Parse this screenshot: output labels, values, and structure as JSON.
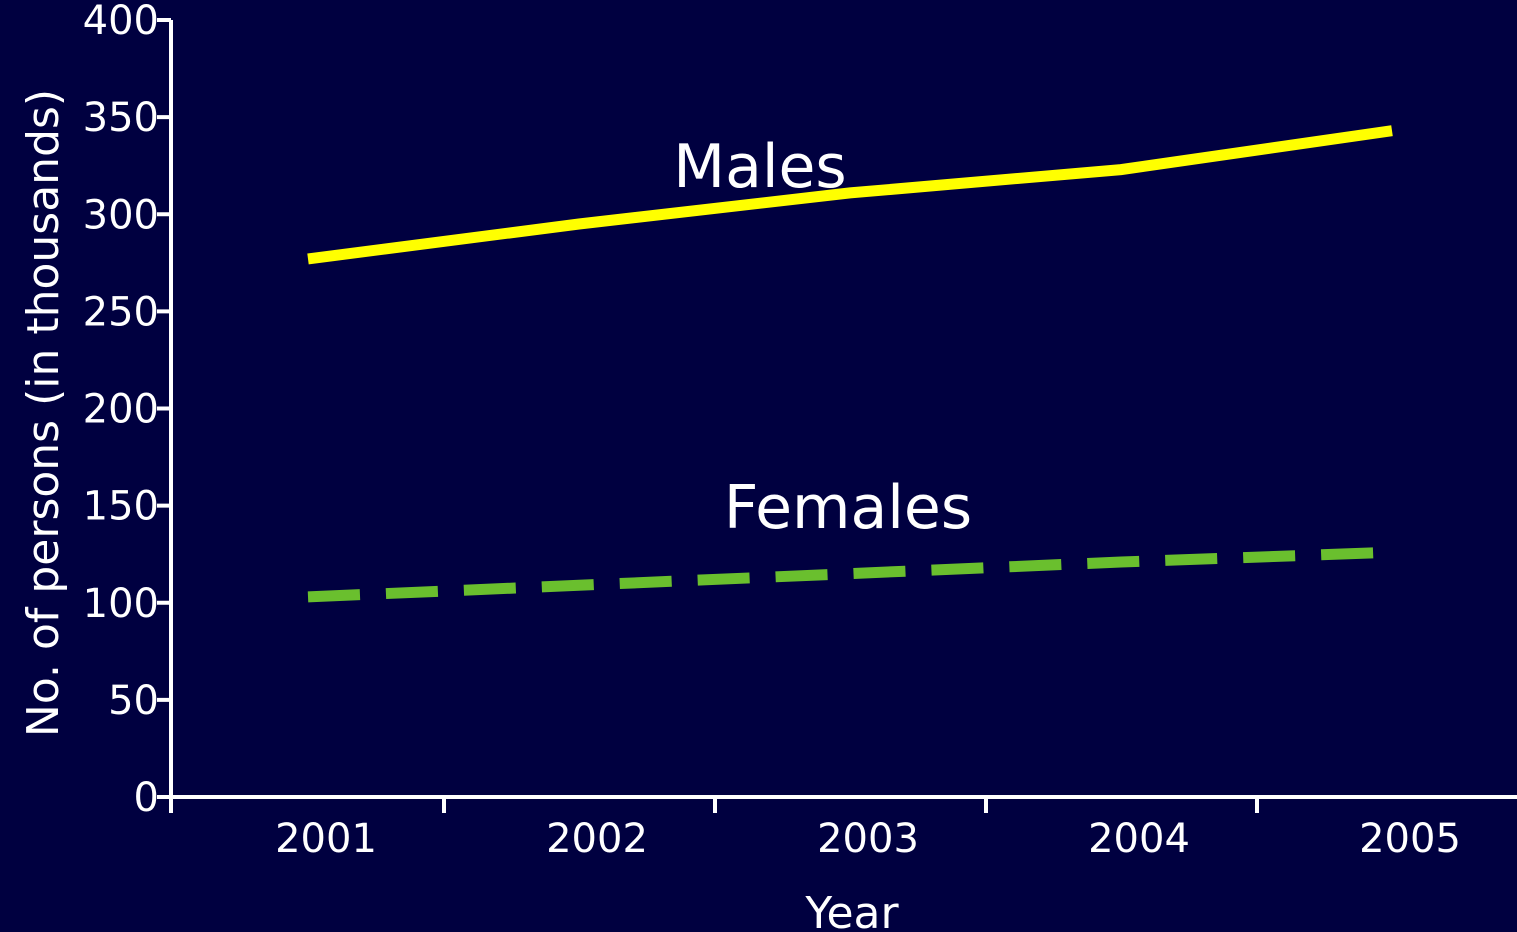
{
  "chart_data": {
    "type": "line",
    "title": "",
    "xlabel": "Year",
    "ylabel": "No. of persons (in thousands)",
    "x": [
      "2001",
      "2002",
      "2003",
      "2004",
      "2005"
    ],
    "ylim": [
      0,
      400
    ],
    "yticks": [
      "0",
      "50",
      "100",
      "150",
      "200",
      "250",
      "300",
      "350",
      "400"
    ],
    "grid": false,
    "legend": "none",
    "series": [
      {
        "name": "Males",
        "values": [
          277,
          295,
          311,
          323,
          343
        ],
        "color": "#ffff00",
        "style": "solid"
      },
      {
        "name": "Females",
        "values": [
          103,
          109,
          115,
          121,
          126
        ],
        "color": "#6abf2e",
        "style": "dashed"
      }
    ]
  }
}
